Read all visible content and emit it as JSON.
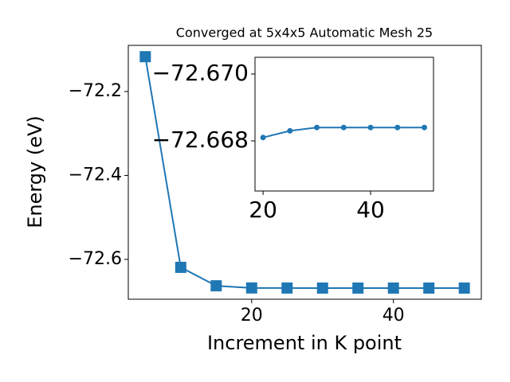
{
  "chart_data": [
    {
      "type": "line",
      "title": "Converged at 5x4x5 Automatic Mesh 25",
      "x_label": "Increment in K point",
      "y_label": "Energy (eV)",
      "x": [
        5,
        10,
        15,
        20,
        25,
        30,
        35,
        40,
        45,
        50
      ],
      "series": [
        {
          "color": "#1f77b4",
          "marker": "square",
          "values": [
            -72.117,
            -72.619,
            -72.663,
            -72.6681,
            -72.6683,
            -72.6684,
            -72.6684,
            -72.6684,
            -72.6684,
            -72.6684
          ]
        }
      ],
      "xlim": [
        2.6,
        52.4
      ],
      "xticks": [
        20,
        40
      ],
      "ylim": [
        -72.695,
        -72.09
      ],
      "yticks": [
        {
          "value": -72.6,
          "label": "−72.6"
        },
        {
          "value": -72.4,
          "label": "−72.4"
        },
        {
          "value": -72.2,
          "label": "−72.2"
        }
      ]
    },
    {
      "type": "line",
      "x": [
        20,
        25,
        30,
        35,
        40,
        45,
        50
      ],
      "series": [
        {
          "color": "#1f77b4",
          "marker": "circle",
          "values": [
            -72.6681,
            -72.6683,
            -72.6684,
            -72.6684,
            -72.6684,
            -72.6684,
            -72.6684
          ]
        }
      ],
      "xlim": [
        18.5,
        51.7
      ],
      "xticks": [
        20,
        40
      ],
      "ylim": [
        -72.6665,
        -72.6705
      ],
      "yticks": [
        {
          "value": -72.668,
          "label": "−72.668"
        },
        {
          "value": -72.67,
          "label": "−72.670"
        }
      ]
    }
  ]
}
